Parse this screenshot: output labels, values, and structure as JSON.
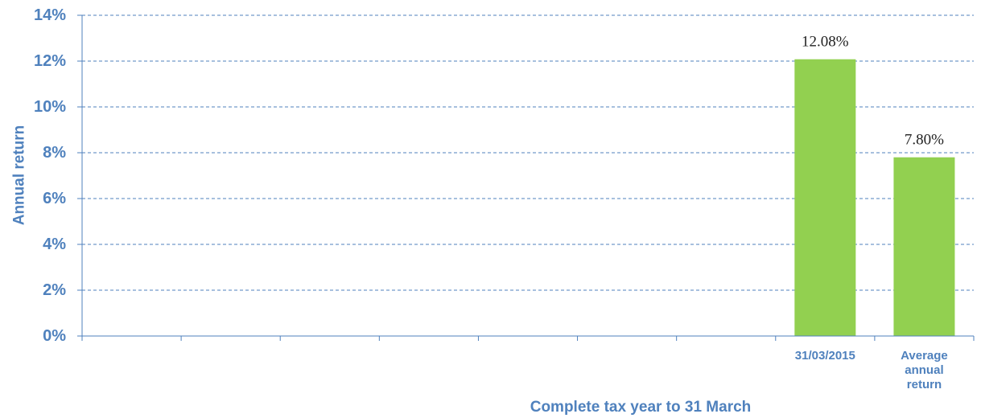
{
  "colors": {
    "bar": "#92d050",
    "text": "#4f81bd",
    "grid": "#4f81bd",
    "axis": "#4f81bd",
    "data_label": "#222222"
  },
  "chart_data": {
    "type": "bar",
    "categories": [
      "",
      "",
      "",
      "",
      "",
      "",
      "",
      "31/03/2015",
      "Average annual return"
    ],
    "category_lines": [
      [],
      [],
      [],
      [],
      [],
      [],
      [],
      [
        "31/03/2015"
      ],
      [
        "Average",
        "annual",
        "return"
      ]
    ],
    "values": [
      null,
      null,
      null,
      null,
      null,
      null,
      null,
      12.08,
      7.8
    ],
    "data_labels": [
      "",
      "",
      "",
      "",
      "",
      "",
      "",
      "12.08%",
      "7.80%"
    ],
    "ylim": [
      0,
      14
    ],
    "yticks": [
      0,
      2,
      4,
      6,
      8,
      10,
      12,
      14
    ],
    "ytick_labels": [
      "0%",
      "2%",
      "4%",
      "6%",
      "8%",
      "10%",
      "12%",
      "14%"
    ],
    "xlabel": "Complete tax year to 31 March",
    "ylabel": "Annual return",
    "grid": true,
    "grid_style": "dashed",
    "legend": false
  }
}
